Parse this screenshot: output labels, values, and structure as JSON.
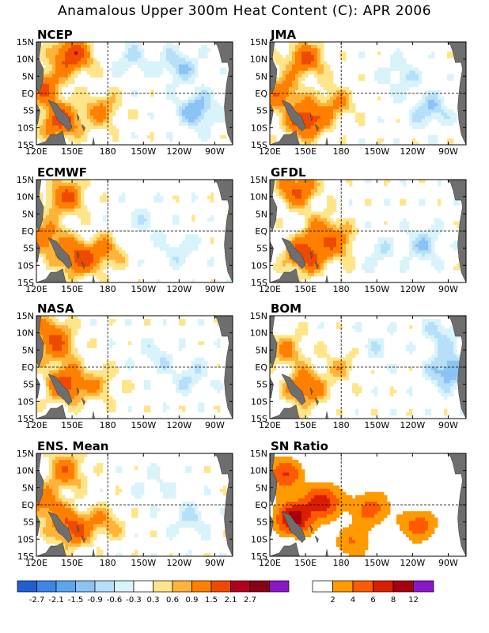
{
  "title": "Anamalous Upper 300m Heat Content (C): APR 2006",
  "chart_data": [
    {
      "type": "heatmap",
      "title": "NCEP",
      "x_ticks": [
        "120E",
        "150E",
        "180",
        "150W",
        "120W",
        "90W"
      ],
      "y_ticks": [
        "15N",
        "10N",
        "5N",
        "EQ",
        "5S",
        "10S",
        "15S"
      ],
      "hotspots": [
        [
          140,
          -8,
          1.8
        ],
        [
          150,
          11,
          2.0
        ],
        [
          125,
          2,
          1.5
        ],
        [
          175,
          -5,
          1.0
        ],
        [
          200,
          10,
          -0.6
        ],
        [
          255,
          -5,
          -1.2
        ],
        [
          240,
          8,
          -0.9
        ]
      ]
    },
    {
      "type": "heatmap",
      "title": "JMA",
      "x_ticks": [
        "120E",
        "150E",
        "180",
        "150W",
        "120W",
        "90W"
      ],
      "y_ticks": [
        "15N",
        "10N",
        "5N",
        "EQ",
        "5S",
        "10S",
        "15S"
      ],
      "hotspots": [
        [
          150,
          -8,
          2.0
        ],
        [
          150,
          10,
          1.5
        ],
        [
          128,
          0,
          1.3
        ],
        [
          175,
          -3,
          0.9
        ],
        [
          230,
          5,
          -0.6
        ],
        [
          255,
          -5,
          -0.9
        ]
      ]
    },
    {
      "type": "heatmap",
      "title": "ECMWF",
      "x_ticks": [
        "120E",
        "150E",
        "180",
        "150W",
        "120W",
        "90W"
      ],
      "y_ticks": [
        "15N",
        "10N",
        "5N",
        "EQ",
        "5S",
        "10S",
        "15S"
      ],
      "hotspots": [
        [
          155,
          -8,
          1.7
        ],
        [
          145,
          10,
          1.5
        ],
        [
          128,
          -2,
          1.3
        ],
        [
          178,
          -6,
          0.9
        ],
        [
          210,
          3,
          -0.4
        ],
        [
          240,
          -5,
          -0.5
        ]
      ]
    },
    {
      "type": "heatmap",
      "title": "GFDL",
      "x_ticks": [
        "120E",
        "150E",
        "180",
        "150W",
        "120W",
        "90W"
      ],
      "y_ticks": [
        "15N",
        "10N",
        "5N",
        "EQ",
        "5S",
        "10S",
        "15S"
      ],
      "hotspots": [
        [
          150,
          -7,
          1.9
        ],
        [
          143,
          12,
          1.6
        ],
        [
          165,
          0,
          1.0
        ],
        [
          180,
          -4,
          0.9
        ],
        [
          210,
          -6,
          -0.5
        ],
        [
          250,
          -4,
          -0.8
        ]
      ]
    },
    {
      "type": "heatmap",
      "title": "NASA",
      "x_ticks": [
        "120E",
        "150E",
        "180",
        "150W",
        "120W",
        "90W"
      ],
      "y_ticks": [
        "15N",
        "10N",
        "5N",
        "EQ",
        "5S",
        "10S",
        "15S"
      ],
      "hotspots": [
        [
          145,
          -5,
          1.8
        ],
        [
          138,
          6,
          1.2
        ],
        [
          130,
          11,
          0.9
        ],
        [
          175,
          -5,
          0.7
        ],
        [
          220,
          3,
          -0.5
        ],
        [
          250,
          -3,
          -0.6
        ]
      ]
    },
    {
      "type": "heatmap",
      "title": "BOM",
      "x_ticks": [
        "120E",
        "150E",
        "180",
        "150W",
        "120W",
        "90W"
      ],
      "y_ticks": [
        "15N",
        "10N",
        "5N",
        "EQ",
        "5S",
        "10S",
        "15S"
      ],
      "hotspots": [
        [
          150,
          -6,
          1.5
        ],
        [
          135,
          5,
          0.9
        ],
        [
          180,
          0,
          0.6
        ],
        [
          210,
          6,
          -0.4
        ],
        [
          270,
          -1,
          -1.3
        ],
        [
          265,
          10,
          -0.7
        ]
      ]
    },
    {
      "type": "heatmap",
      "title": "ENS. Mean",
      "x_ticks": [
        "120E",
        "150E",
        "180",
        "150W",
        "120W",
        "90W"
      ],
      "y_ticks": [
        "15N",
        "10N",
        "5N",
        "EQ",
        "5S",
        "10S",
        "15S"
      ],
      "hotspots": [
        [
          150,
          -7,
          1.7
        ],
        [
          145,
          10,
          1.3
        ],
        [
          128,
          0,
          1.2
        ],
        [
          178,
          -5,
          0.8
        ],
        [
          220,
          5,
          -0.4
        ],
        [
          250,
          -4,
          -0.6
        ]
      ]
    },
    {
      "type": "heatmap",
      "title": "SN Ratio",
      "x_ticks": [
        "120E",
        "150E",
        "180",
        "150W",
        "120W",
        "90W"
      ],
      "y_ticks": [
        "15N",
        "10N",
        "5N",
        "EQ",
        "5S",
        "10S",
        "15S"
      ],
      "hotspots": [
        [
          140,
          -4,
          9
        ],
        [
          132,
          9,
          6
        ],
        [
          165,
          1,
          7
        ],
        [
          205,
          -1,
          5
        ],
        [
          245,
          -6,
          5
        ],
        [
          190,
          -11,
          4
        ]
      ]
    }
  ],
  "colorbar_anomaly": {
    "labels": [
      "-2.7",
      "-2.1",
      "-1.5",
      "-0.9",
      "-0.6",
      "-0.3",
      "0.3",
      "0.6",
      "0.9",
      "1.5",
      "2.1",
      "2.7"
    ],
    "colors": [
      "#1f5fd1",
      "#3b86e6",
      "#5ca6ef",
      "#8bc3f5",
      "#b6dff9",
      "#d9f3fb",
      "#ffffff",
      "#ffe58a",
      "#ffb439",
      "#ff8000",
      "#f04a00",
      "#b4001e",
      "#8b0015",
      "#8c16c7"
    ]
  },
  "colorbar_snr": {
    "labels": [
      "2",
      "4",
      "6",
      "8",
      "12"
    ],
    "colors": [
      "#ffffff",
      "#ff9a00",
      "#ff5a00",
      "#d91f00",
      "#a8000f",
      "#8c16c7"
    ]
  }
}
